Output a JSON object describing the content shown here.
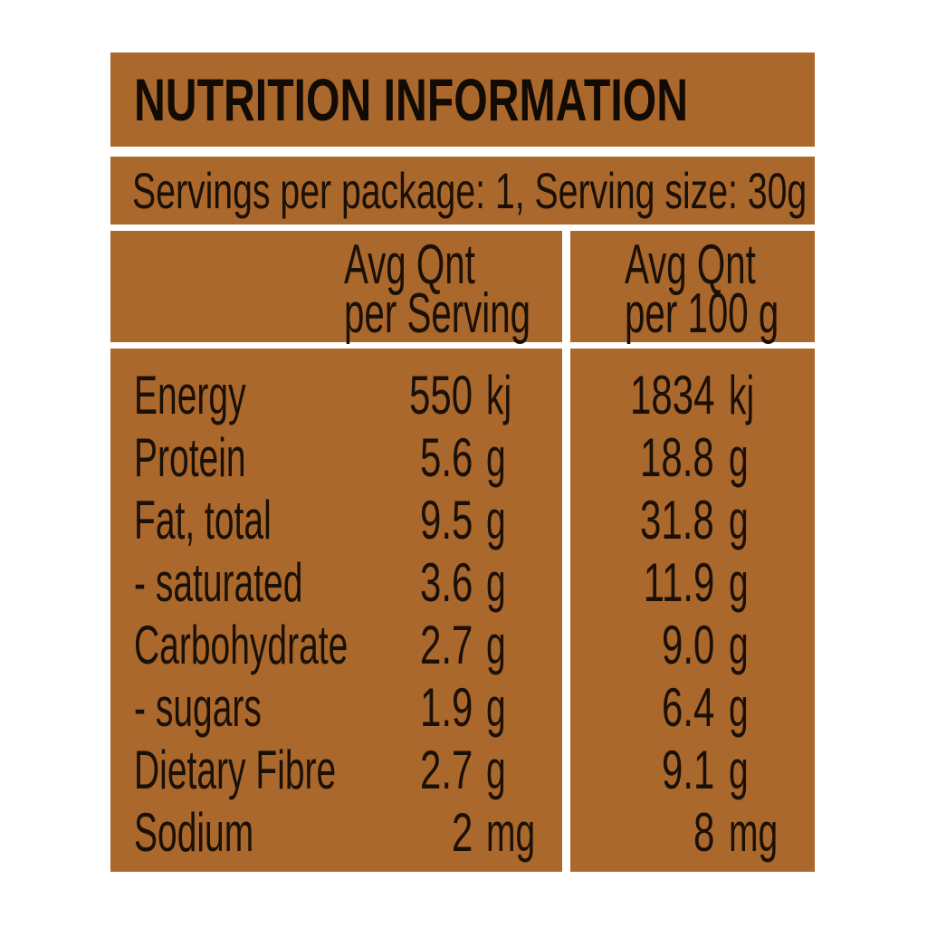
{
  "colors": {
    "panel_background": "#ab682d",
    "text": "#1a1005",
    "title_text": "#120b04",
    "divider": "#ffffff",
    "page_background": "#ffffff"
  },
  "title": "NUTRITION INFORMATION",
  "serving_line": "Servings per package: 1, Serving size: 30g",
  "columns": {
    "serving": {
      "line1": "Avg Qnt",
      "line2": "per Serving"
    },
    "per100": {
      "line1": "Avg Qnt",
      "line2": "per 100 g"
    }
  },
  "rows": [
    {
      "label": "Energy",
      "serving_value": "550",
      "serving_unit": "kj",
      "per100_value": "1834",
      "per100_unit": "kj"
    },
    {
      "label": "Protein",
      "serving_value": "5.6",
      "serving_unit": "g",
      "per100_value": "18.8",
      "per100_unit": "g"
    },
    {
      "label": "Fat, total",
      "serving_value": "9.5",
      "serving_unit": "g",
      "per100_value": "31.8",
      "per100_unit": "g"
    },
    {
      "label": "- saturated",
      "serving_value": "3.6",
      "serving_unit": "g",
      "per100_value": "11.9",
      "per100_unit": "g"
    },
    {
      "label": "Carbohydrate",
      "serving_value": "2.7",
      "serving_unit": "g",
      "per100_value": "9.0",
      "per100_unit": "g"
    },
    {
      "label": "- sugars",
      "serving_value": "1.9",
      "serving_unit": "g",
      "per100_value": "6.4",
      "per100_unit": "g"
    },
    {
      "label": "Dietary Fibre",
      "serving_value": "2.7",
      "serving_unit": "g",
      "per100_value": "9.1",
      "per100_unit": "g"
    },
    {
      "label": "Sodium",
      "serving_value": "2",
      "serving_unit": "mg",
      "per100_value": "8",
      "per100_unit": "mg"
    }
  ]
}
